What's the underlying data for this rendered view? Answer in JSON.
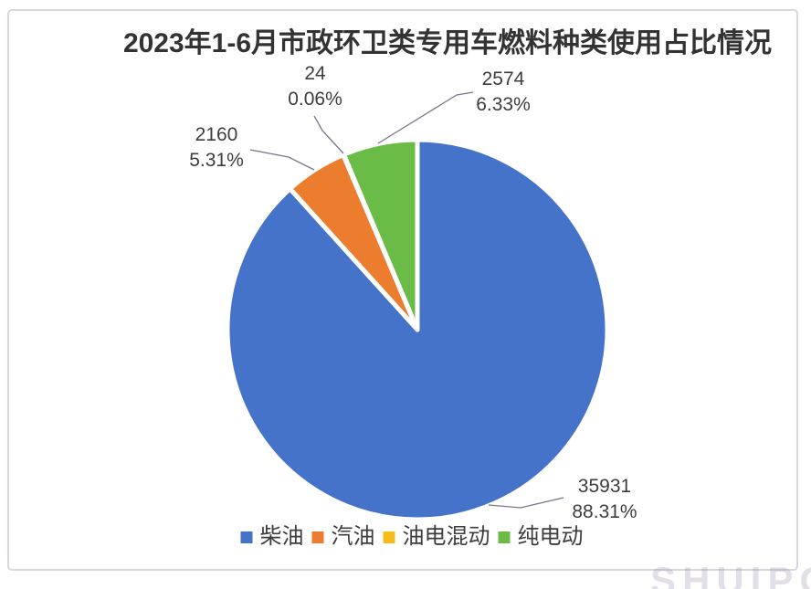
{
  "chart_data": {
    "type": "pie",
    "title": "2023年1-6月市政环卫类专用车燃料种类使用占比情况",
    "legend_position": "bottom",
    "start_angle_deg": 0,
    "direction": "clockwise",
    "slices": [
      {
        "key": "diesel",
        "label": "柴油",
        "value": 35931,
        "percent_label": "88.31%",
        "color": "#4573C9"
      },
      {
        "key": "gasoline",
        "label": "汽油",
        "value": 2160,
        "percent_label": "5.31%",
        "color": "#EC7D2F"
      },
      {
        "key": "hybrid",
        "label": "油电混动",
        "value": 24,
        "percent_label": "0.06%",
        "color": "#F6BC1B"
      },
      {
        "key": "electric",
        "label": "纯电动",
        "value": 2574,
        "percent_label": "6.33%",
        "color": "#6ABC47"
      }
    ]
  },
  "watermark": {
    "text": "SHUIPO"
  }
}
